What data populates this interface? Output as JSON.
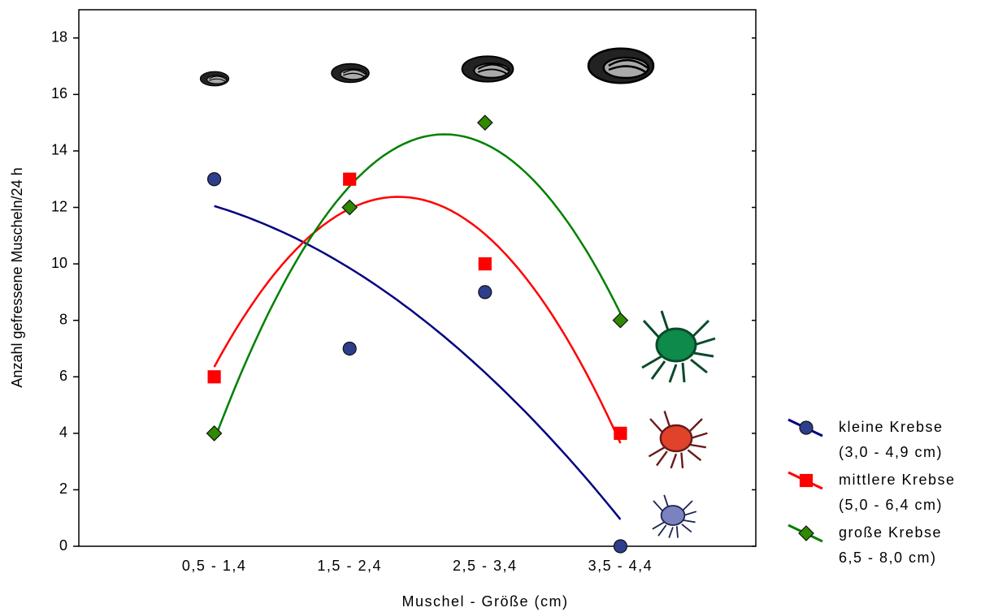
{
  "chart_data": {
    "type": "scatter",
    "xlabel": "Muschel - Größe (cm)",
    "ylabel": "Anzahl gefressene Muscheln/24 h",
    "categories": [
      "0,5 - 1,4",
      "1,5 - 2,4",
      "2,5 - 3,4",
      "3,5 - 4,4"
    ],
    "series": [
      {
        "name": "kleine Krebse\n(3,0 - 4,9 cm)",
        "color": "#000080",
        "marker": "circle",
        "marker_color": "#2d3e8c",
        "values": [
          13,
          7,
          9,
          0
        ]
      },
      {
        "name": "mittlere Krebse\n(5,0 - 6,4 cm)",
        "color": "#ff0000",
        "marker": "square",
        "marker_color": "#ff0000",
        "values": [
          6,
          13,
          10,
          4
        ]
      },
      {
        "name": "große Krebse\n6,5 - 8,0 cm)",
        "color": "#008000",
        "marker": "diamond",
        "marker_color": "#2f8a00",
        "values": [
          4,
          12,
          15,
          8
        ]
      }
    ],
    "trend": "quadratic",
    "ylim": [
      0,
      19
    ],
    "yticks": [
      0,
      2,
      4,
      6,
      8,
      10,
      12,
      14,
      16,
      18
    ]
  }
}
